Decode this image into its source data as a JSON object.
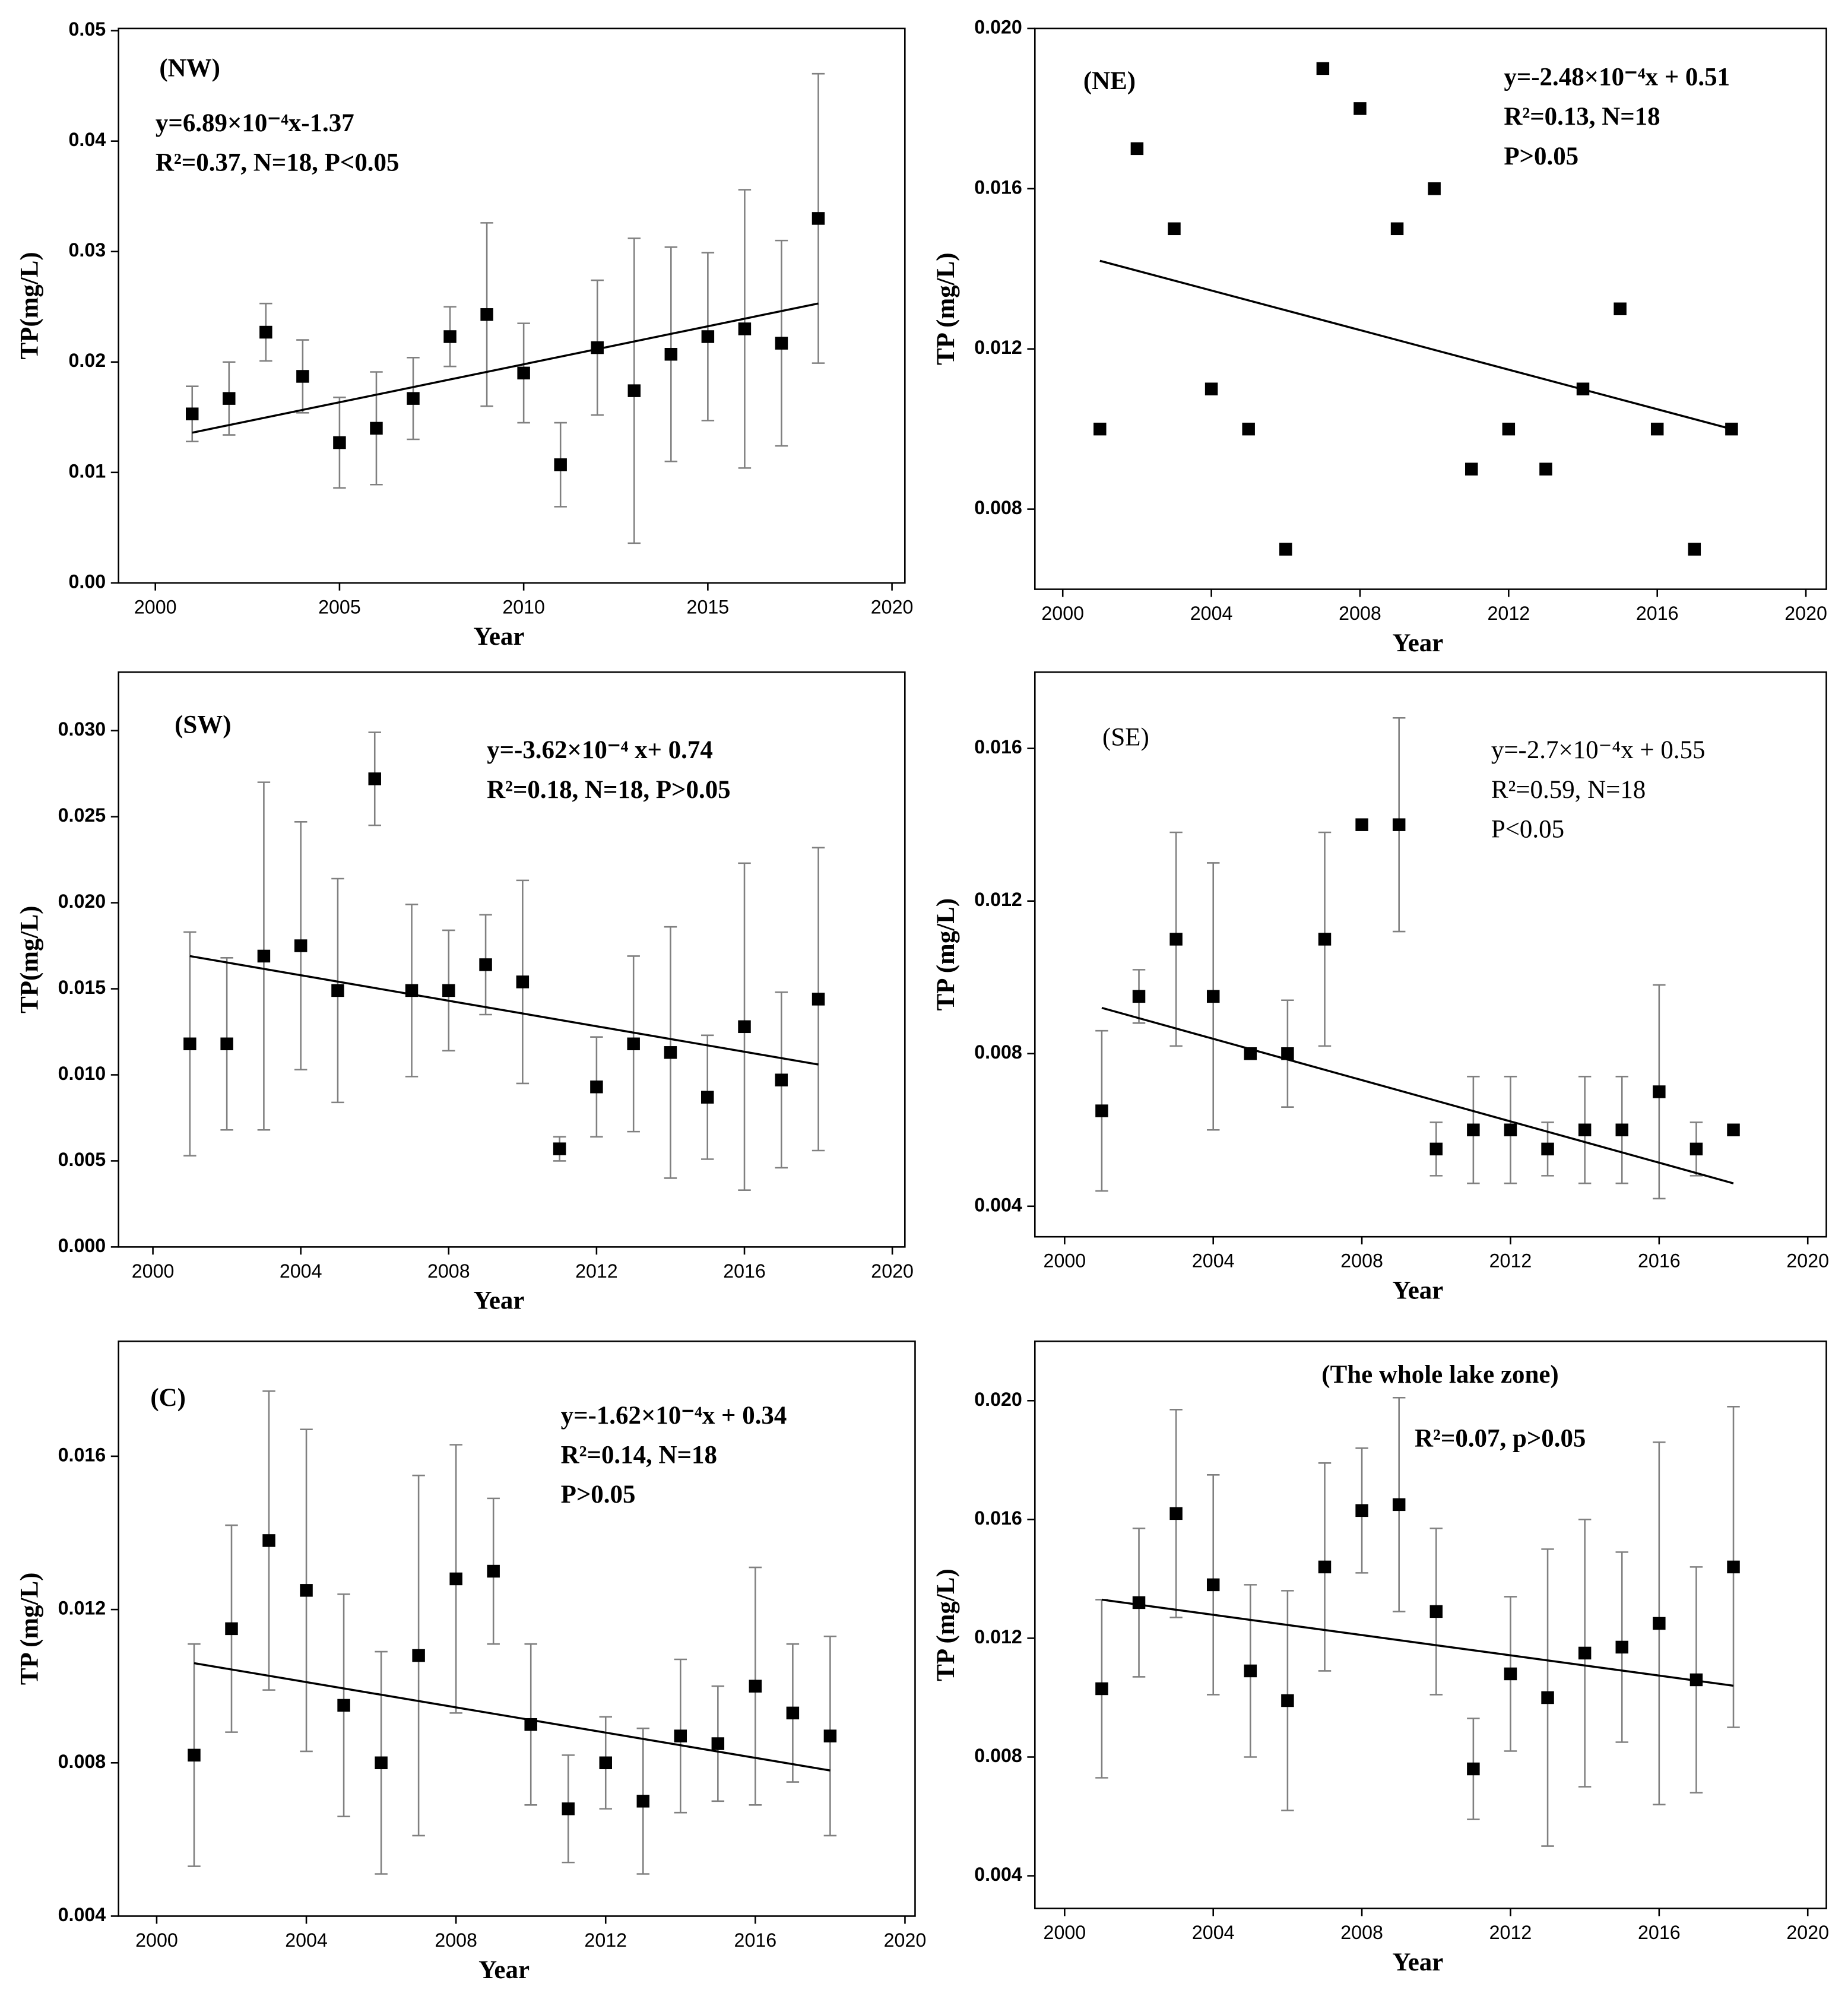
{
  "chart_data": [
    {
      "type": "scatter",
      "label": "(NW)",
      "bold": true,
      "x_label": "Year",
      "y_label": "TP(mg/L)",
      "annotations": [
        "y=6.89×10⁻⁴x-1.37",
        "R²=0.37, N=18, P<0.05"
      ],
      "x": [
        2001,
        2002,
        2003,
        2004,
        2005,
        2006,
        2007,
        2008,
        2009,
        2010,
        2011,
        2012,
        2013,
        2014,
        2015,
        2016,
        2017,
        2018
      ],
      "values": [
        0.0153,
        0.0167,
        0.0227,
        0.0187,
        0.0127,
        0.014,
        0.0167,
        0.0223,
        0.0243,
        0.019,
        0.0107,
        0.0213,
        0.0174,
        0.0207,
        0.0223,
        0.023,
        0.0217,
        0.033
      ],
      "errors": [
        0.0025,
        0.0033,
        0.0026,
        0.0033,
        0.0041,
        0.0051,
        0.0037,
        0.0027,
        0.0083,
        0.0045,
        0.0038,
        0.0061,
        0.0138,
        0.0097,
        0.0076,
        0.0126,
        0.0093,
        0.0131
      ],
      "trend": {
        "x": [
          2001,
          2018
        ],
        "values": [
          0.0136,
          0.0253
        ]
      },
      "xlim": [
        1999.0,
        2020.35
      ],
      "ylim": [
        0,
        0.0502
      ],
      "xticks": [
        2000,
        2005,
        2010,
        2015,
        2020
      ],
      "yticks": [
        {
          "value": 0,
          "label": "0.00"
        },
        0.01,
        0.02,
        0.03,
        0.04,
        0.05
      ]
    },
    {
      "type": "scatter",
      "label": "(NE)",
      "bold": true,
      "x_label": "Year",
      "y_label": "TP (mg/L)",
      "annotations": [
        "y=-2.48×10⁻⁴x + 0.51",
        "R²=0.13, N=18",
        "P>0.05"
      ],
      "x": [
        2001,
        2002,
        2003,
        2004,
        2005,
        2006,
        2007,
        2008,
        2009,
        2010,
        2011,
        2012,
        2013,
        2014,
        2015,
        2016,
        2017,
        2018
      ],
      "values": [
        0.01,
        0.017,
        0.015,
        0.011,
        0.01,
        0.007,
        0.019,
        0.018,
        0.015,
        0.016,
        0.009,
        0.01,
        0.009,
        0.011,
        0.013,
        0.01,
        0.007,
        0.01
      ],
      "trend": {
        "x": [
          2001,
          2018
        ],
        "values": [
          0.0142,
          0.01
        ]
      },
      "xlim": [
        1999.25,
        2020.55
      ],
      "ylim": [
        0.006,
        0.02
      ],
      "xticks": [
        2000,
        2004,
        2008,
        2012,
        2016,
        2020
      ],
      "yticks": [
        0.008,
        0.012,
        0.016,
        {
          "value": 0.02,
          "label": "0.020"
        }
      ]
    },
    {
      "type": "scatter",
      "label": "(SW)",
      "bold": true,
      "x_label": "Year",
      "y_label": "TP(mg/L)",
      "annotations": [
        "y=-3.62×10⁻⁴ x+ 0.74",
        "R²=0.18, N=18, P>0.05"
      ],
      "x": [
        2001,
        2002,
        2003,
        2004,
        2005,
        2006,
        2007,
        2008,
        2009,
        2010,
        2011,
        2012,
        2013,
        2014,
        2015,
        2016,
        2017,
        2018
      ],
      "values": [
        0.0118,
        0.0118,
        0.0169,
        0.0175,
        0.0149,
        0.0272,
        0.0149,
        0.0149,
        0.0164,
        0.0154,
        0.0057,
        0.0093,
        0.0118,
        0.0113,
        0.0087,
        0.0128,
        0.0097,
        0.0144
      ],
      "errors": [
        0.0065,
        0.005,
        0.0101,
        0.0072,
        0.0065,
        0.0027,
        0.005,
        0.0035,
        0.0029,
        0.0059,
        0.0007,
        0.0029,
        0.0051,
        0.0073,
        0.0036,
        0.0095,
        0.0051,
        0.0088
      ],
      "trend": {
        "x": [
          2001,
          2018
        ],
        "values": [
          0.0169,
          0.0106
        ]
      },
      "xlim": [
        1999.07,
        2020.34
      ],
      "ylim": [
        0,
        0.0334
      ],
      "xticks": [
        2000,
        2004,
        2008,
        2012,
        2016,
        2020
      ],
      "yticks": [
        {
          "value": 0,
          "label": "0.000"
        },
        0.005,
        {
          "value": 0.01,
          "label": "0.010"
        },
        0.015,
        {
          "value": 0.02,
          "label": "0.020"
        },
        0.025,
        {
          "value": 0.03,
          "label": "0.030"
        }
      ]
    },
    {
      "type": "scatter",
      "label": "(SE)",
      "bold": false,
      "x_label": "Year",
      "y_label": "TP (mg/L)",
      "annotations": [
        "y=-2.7×10⁻⁴x + 0.55",
        "R²=0.59, N=18",
        "P<0.05"
      ],
      "x": [
        2001,
        2002,
        2003,
        2004,
        2005,
        2006,
        2007,
        2008,
        2009,
        2010,
        2011,
        2012,
        2013,
        2014,
        2015,
        2016,
        2017,
        2018
      ],
      "values": [
        0.0065,
        0.0095,
        0.011,
        0.0095,
        0.008,
        0.008,
        0.011,
        0.014,
        0.014,
        0.0055,
        0.006,
        0.006,
        0.0055,
        0.006,
        0.006,
        0.007,
        0.0055,
        0.006
      ],
      "errors": [
        0.0021,
        0.0007,
        0.0028,
        0.0035,
        null,
        0.0014,
        0.0028,
        null,
        0.0028,
        0.0007,
        0.0014,
        0.0014,
        0.0007,
        0.0014,
        0.0014,
        0.0028,
        0.0007,
        null
      ],
      "trend": {
        "x": [
          2001,
          2018
        ],
        "values": [
          0.0092,
          0.0046
        ]
      },
      "xlim": [
        1999.2,
        2020.5
      ],
      "ylim": [
        0.0032,
        0.018
      ],
      "xticks": [
        2000,
        2004,
        2008,
        2012,
        2016,
        2020
      ],
      "yticks": [
        0.004,
        0.008,
        0.012,
        0.016
      ]
    },
    {
      "type": "scatter",
      "label": "(C)",
      "bold": true,
      "x_label": "Year",
      "y_label": "TP (mg/L)",
      "annotations": [
        "y=-1.62×10⁻⁴x + 0.34",
        "R²=0.14, N=18",
        "P>0.05"
      ],
      "x": [
        2001,
        2002,
        2003,
        2004,
        2005,
        2006,
        2007,
        2008,
        2009,
        2010,
        2011,
        2012,
        2013,
        2014,
        2015,
        2016,
        2017,
        2018
      ],
      "values": [
        0.0082,
        0.0115,
        0.0138,
        0.0125,
        0.0095,
        0.008,
        0.0108,
        0.0128,
        0.013,
        0.009,
        0.0068,
        0.008,
        0.007,
        0.0087,
        0.0085,
        0.01,
        0.0093,
        0.0087
      ],
      "errors": [
        0.0029,
        0.0027,
        0.0039,
        0.0042,
        0.0029,
        0.0029,
        0.0047,
        0.0035,
        0.0019,
        0.0021,
        0.0014,
        0.0012,
        0.0019,
        0.002,
        0.0015,
        0.0031,
        0.0018,
        0.0026
      ],
      "trend": {
        "x": [
          2001,
          2018
        ],
        "values": [
          0.0106,
          0.0078
        ]
      },
      "xlim": [
        1998.98,
        2020.27
      ],
      "ylim": [
        0.004,
        0.019
      ],
      "xticks": [
        2000,
        2004,
        2008,
        2012,
        2016,
        2020
      ],
      "yticks": [
        0.004,
        0.008,
        0.012,
        0.016
      ]
    },
    {
      "type": "scatter",
      "title": "(The whole lake zone)",
      "bold": true,
      "x_label": "Year",
      "y_label": "TP (mg/L)",
      "annotations": [
        "R²=0.07, p>0.05"
      ],
      "x": [
        2001,
        2002,
        2003,
        2004,
        2005,
        2006,
        2007,
        2008,
        2009,
        2010,
        2011,
        2012,
        2013,
        2014,
        2015,
        2016,
        2017,
        2018
      ],
      "values": [
        0.0103,
        0.0132,
        0.0162,
        0.0138,
        0.0109,
        0.0099,
        0.0144,
        0.0163,
        0.0165,
        0.0129,
        0.0076,
        0.0108,
        0.01,
        0.0115,
        0.0117,
        0.0125,
        0.0106,
        0.0144
      ],
      "errors": [
        0.003,
        0.0025,
        0.0035,
        0.0037,
        0.0029,
        0.0037,
        0.0035,
        0.0021,
        0.0036,
        0.0028,
        0.0017,
        0.0026,
        0.005,
        0.0045,
        0.0032,
        0.0061,
        0.0038,
        0.0054
      ],
      "trend": {
        "x": [
          2001,
          2018
        ],
        "values": [
          0.0133,
          0.0104
        ]
      },
      "xlim": [
        1999.2,
        2020.5
      ],
      "ylim": [
        0.0029,
        0.022
      ],
      "xticks": [
        2000,
        2004,
        2008,
        2012,
        2016,
        2020
      ],
      "yticks": [
        0.004,
        0.008,
        0.012,
        0.016,
        {
          "value": 0.02,
          "label": "0.020"
        }
      ]
    }
  ]
}
